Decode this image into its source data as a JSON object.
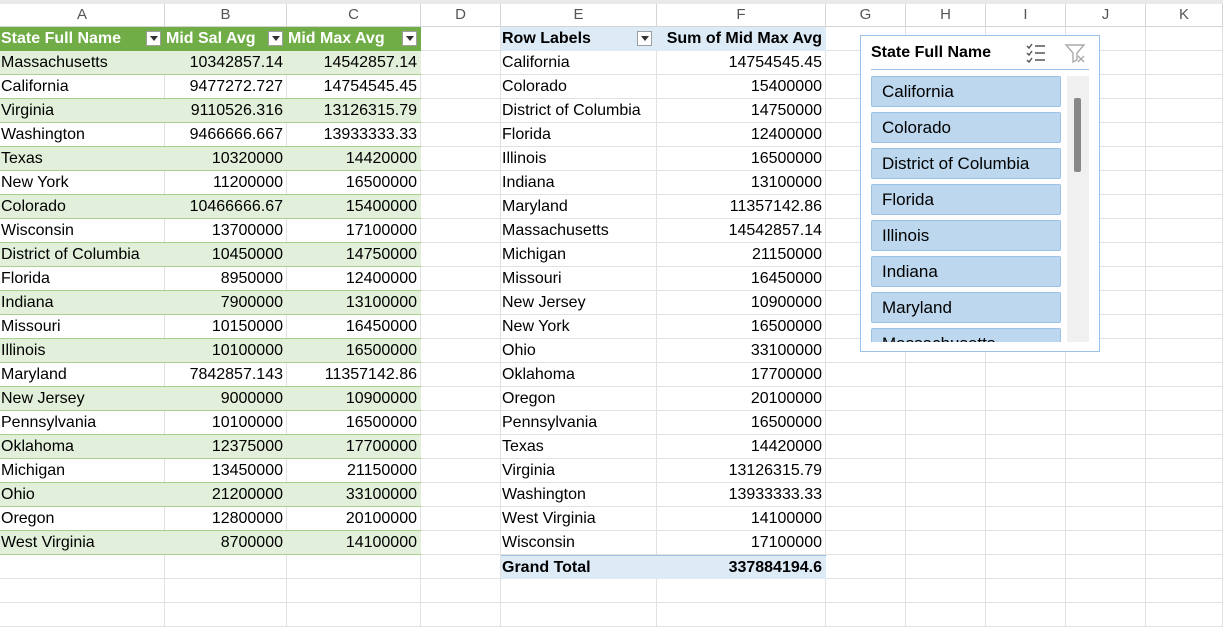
{
  "columns": [
    "A",
    "B",
    "C",
    "D",
    "E",
    "F",
    "G",
    "H",
    "I",
    "J",
    "K"
  ],
  "table": {
    "headers": [
      "State Full Name",
      "Mid Sal Avg",
      "Mid Max Avg"
    ],
    "rows": [
      [
        "Massachusetts",
        "10342857.14",
        "14542857.14"
      ],
      [
        "California",
        "9477272.727",
        "14754545.45"
      ],
      [
        "Virginia",
        "9110526.316",
        "13126315.79"
      ],
      [
        "Washington",
        "9466666.667",
        "13933333.33"
      ],
      [
        "Texas",
        "10320000",
        "14420000"
      ],
      [
        "New York",
        "11200000",
        "16500000"
      ],
      [
        "Colorado",
        "10466666.67",
        "15400000"
      ],
      [
        "Wisconsin",
        "13700000",
        "17100000"
      ],
      [
        "District of Columbia",
        "10450000",
        "14750000"
      ],
      [
        "Florida",
        "8950000",
        "12400000"
      ],
      [
        "Indiana",
        "7900000",
        "13100000"
      ],
      [
        "Missouri",
        "10150000",
        "16450000"
      ],
      [
        "Illinois",
        "10100000",
        "16500000"
      ],
      [
        "Maryland",
        "7842857.143",
        "11357142.86"
      ],
      [
        "New Jersey",
        "9000000",
        "10900000"
      ],
      [
        "Pennsylvania",
        "10100000",
        "16500000"
      ],
      [
        "Oklahoma",
        "12375000",
        "17700000"
      ],
      [
        "Michigan",
        "13450000",
        "21150000"
      ],
      [
        "Ohio",
        "21200000",
        "33100000"
      ],
      [
        "Oregon",
        "12800000",
        "20100000"
      ],
      [
        "West Virginia",
        "8700000",
        "14100000"
      ]
    ]
  },
  "pivot": {
    "headers": [
      "Row Labels",
      "Sum of Mid Max Avg"
    ],
    "rows": [
      [
        "California",
        "14754545.45"
      ],
      [
        "Colorado",
        "15400000"
      ],
      [
        "District of Columbia",
        "14750000"
      ],
      [
        "Florida",
        "12400000"
      ],
      [
        "Illinois",
        "16500000"
      ],
      [
        "Indiana",
        "13100000"
      ],
      [
        "Maryland",
        "11357142.86"
      ],
      [
        "Massachusetts",
        "14542857.14"
      ],
      [
        "Michigan",
        "21150000"
      ],
      [
        "Missouri",
        "16450000"
      ],
      [
        "New Jersey",
        "10900000"
      ],
      [
        "New York",
        "16500000"
      ],
      [
        "Ohio",
        "33100000"
      ],
      [
        "Oklahoma",
        "17700000"
      ],
      [
        "Oregon",
        "20100000"
      ],
      [
        "Pennsylvania",
        "16500000"
      ],
      [
        "Texas",
        "14420000"
      ],
      [
        "Virginia",
        "13126315.79"
      ],
      [
        "Washington",
        "13933333.33"
      ],
      [
        "West Virginia",
        "14100000"
      ],
      [
        "Wisconsin",
        "17100000"
      ]
    ],
    "total_label": "Grand Total",
    "total_value": "337884194.6"
  },
  "slicer": {
    "title": "State Full Name",
    "items": [
      "California",
      "Colorado",
      "District of Columbia",
      "Florida",
      "Illinois",
      "Indiana",
      "Maryland",
      "Massachusetts"
    ],
    "icons": [
      "multi-select-icon",
      "clear-filter-icon"
    ]
  },
  "colors": {
    "table_header": "#70ad47",
    "table_band": "#e2efda",
    "pivot_header": "#ddebf7",
    "slicer_item": "#bdd7ee"
  }
}
